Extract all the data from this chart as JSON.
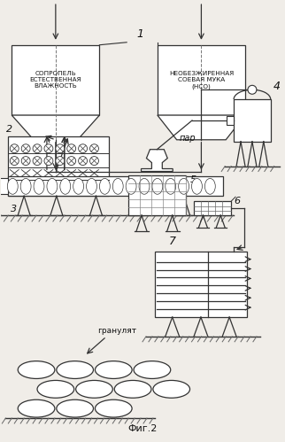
{
  "title": "Фиг.2",
  "bg_color": "#f0ede8",
  "line_color": "#333333",
  "text_color": "#111111",
  "hopper1_label": "СОПРОПЕЛЬ\nЕСТЕСТВЕННАЯ\nВЛАЖНОСТЬ",
  "hopper2_label": "НЕОБЕЗЖИРЕННАЯ\nСОЕВАЯ МУКА\n(НСО)",
  "label1": "1",
  "label2": "2",
  "label3": "3",
  "label4": "4",
  "label5": "5",
  "label6": "6",
  "label7": "7",
  "par_label": "пар",
  "granulyat_label": "гранулят"
}
